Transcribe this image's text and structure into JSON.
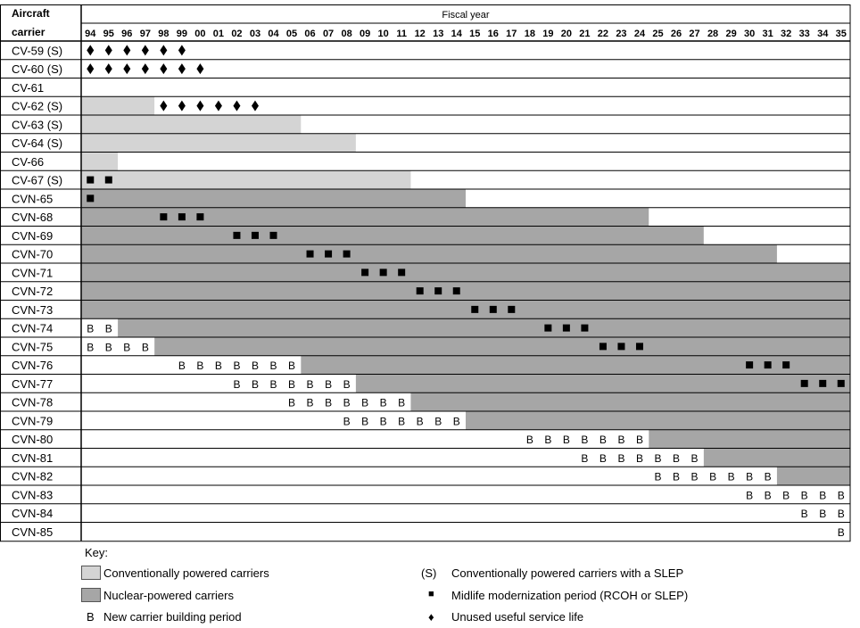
{
  "chart_data": {
    "type": "table",
    "header": {
      "row_label_line1": "Aircraft",
      "row_label_line2": "carrier",
      "columns_title": "Fiscal year"
    },
    "years": [
      "94",
      "95",
      "96",
      "97",
      "98",
      "99",
      "00",
      "01",
      "02",
      "03",
      "04",
      "05",
      "06",
      "07",
      "08",
      "09",
      "10",
      "11",
      "12",
      "13",
      "14",
      "15",
      "16",
      "17",
      "18",
      "19",
      "20",
      "21",
      "22",
      "23",
      "24",
      "25",
      "26",
      "27",
      "28",
      "29",
      "30",
      "31",
      "32",
      "33",
      "34",
      "35"
    ],
    "carriers": [
      {
        "label": "CV-59 (S)",
        "kind": "conventional",
        "service_end": null,
        "unused_life": [
          "94",
          "95",
          "96",
          "97",
          "98",
          "99"
        ],
        "midlife": [],
        "building": []
      },
      {
        "label": "CV-60 (S)",
        "kind": "conventional",
        "service_end": null,
        "unused_life": [
          "94",
          "95",
          "96",
          "97",
          "98",
          "99",
          "00"
        ],
        "midlife": [],
        "building": []
      },
      {
        "label": "CV-61",
        "kind": "conventional",
        "service_end": null,
        "unused_life": [],
        "midlife": [],
        "building": []
      },
      {
        "label": "CV-62 (S)",
        "kind": "conventional",
        "service_end": "97",
        "unused_life": [
          "98",
          "99",
          "00",
          "01",
          "02",
          "03"
        ],
        "midlife": [],
        "building": []
      },
      {
        "label": "CV-63 (S)",
        "kind": "conventional",
        "service_end": "05",
        "unused_life": [],
        "midlife": [],
        "building": []
      },
      {
        "label": "CV-64 (S)",
        "kind": "conventional",
        "service_end": "08",
        "unused_life": [],
        "midlife": [],
        "building": []
      },
      {
        "label": "CV-66",
        "kind": "conventional",
        "service_end": "95",
        "unused_life": [],
        "midlife": [],
        "building": []
      },
      {
        "label": "CV-67 (S)",
        "kind": "conventional",
        "service_end": "11",
        "unused_life": [],
        "midlife": [
          "94",
          "95"
        ],
        "building": []
      },
      {
        "label": "CVN-65",
        "kind": "nuclear",
        "service_end": "14",
        "unused_life": [],
        "midlife": [
          "94"
        ],
        "building": []
      },
      {
        "label": "CVN-68",
        "kind": "nuclear",
        "service_end": "24",
        "unused_life": [],
        "midlife": [
          "98",
          "99",
          "00"
        ],
        "building": []
      },
      {
        "label": "CVN-69",
        "kind": "nuclear",
        "service_end": "27",
        "unused_life": [],
        "midlife": [
          "02",
          "03",
          "04"
        ],
        "building": []
      },
      {
        "label": "CVN-70",
        "kind": "nuclear",
        "service_end": "31",
        "unused_life": [],
        "midlife": [
          "06",
          "07",
          "08"
        ],
        "building": []
      },
      {
        "label": "CVN-71",
        "kind": "nuclear",
        "service_end": "35",
        "unused_life": [],
        "midlife": [
          "09",
          "10",
          "11"
        ],
        "building": []
      },
      {
        "label": "CVN-72",
        "kind": "nuclear",
        "service_end": "35",
        "unused_life": [],
        "midlife": [
          "12",
          "13",
          "14"
        ],
        "building": []
      },
      {
        "label": "CVN-73",
        "kind": "nuclear",
        "service_end": "35",
        "unused_life": [],
        "midlife": [
          "15",
          "16",
          "17"
        ],
        "building": []
      },
      {
        "label": "CVN-74",
        "kind": "nuclear",
        "service_end": "35",
        "unused_life": [],
        "midlife": [
          "19",
          "20",
          "21"
        ],
        "building": [
          "94",
          "95"
        ]
      },
      {
        "label": "CVN-75",
        "kind": "nuclear",
        "service_end": "35",
        "unused_life": [],
        "midlife": [
          "22",
          "23",
          "24"
        ],
        "building": [
          "94",
          "95",
          "96",
          "97"
        ]
      },
      {
        "label": "CVN-76",
        "kind": "nuclear",
        "service_end": "35",
        "unused_life": [],
        "midlife": [
          "30",
          "31",
          "32"
        ],
        "building": [
          "99",
          "00",
          "01",
          "02",
          "03",
          "04",
          "05"
        ]
      },
      {
        "label": "CVN-77",
        "kind": "nuclear",
        "service_end": "35",
        "unused_life": [],
        "midlife": [
          "33",
          "34",
          "35"
        ],
        "building": [
          "02",
          "03",
          "04",
          "05",
          "06",
          "07",
          "08"
        ]
      },
      {
        "label": "CVN-78",
        "kind": "nuclear",
        "service_end": "35",
        "unused_life": [],
        "midlife": [],
        "building": [
          "05",
          "06",
          "07",
          "08",
          "09",
          "10",
          "11"
        ]
      },
      {
        "label": "CVN-79",
        "kind": "nuclear",
        "service_end": "35",
        "unused_life": [],
        "midlife": [],
        "building": [
          "08",
          "09",
          "10",
          "11",
          "12",
          "13",
          "14"
        ]
      },
      {
        "label": "CVN-80",
        "kind": "nuclear",
        "service_end": "35",
        "unused_life": [],
        "midlife": [],
        "building": [
          "18",
          "19",
          "20",
          "21",
          "22",
          "23",
          "24"
        ]
      },
      {
        "label": "CVN-81",
        "kind": "nuclear",
        "service_end": "35",
        "unused_life": [],
        "midlife": [],
        "building": [
          "21",
          "22",
          "23",
          "24",
          "25",
          "26",
          "27"
        ]
      },
      {
        "label": "CVN-82",
        "kind": "nuclear",
        "service_end": "35",
        "unused_life": [],
        "midlife": [],
        "building": [
          "25",
          "26",
          "27",
          "28",
          "29",
          "30",
          "31"
        ]
      },
      {
        "label": "CVN-83",
        "kind": "nuclear",
        "service_end": null,
        "unused_life": [],
        "midlife": [],
        "building": [
          "30",
          "31",
          "32",
          "33",
          "34",
          "35"
        ]
      },
      {
        "label": "CVN-84",
        "kind": "nuclear",
        "service_end": null,
        "unused_life": [],
        "midlife": [],
        "building": [
          "33",
          "34",
          "35"
        ]
      },
      {
        "label": "CVN-85",
        "kind": "nuclear",
        "service_end": null,
        "unused_life": [],
        "midlife": [],
        "building": [
          "35"
        ]
      }
    ],
    "colors": {
      "conventional": "#d4d4d4",
      "nuclear": "#a6a6a6",
      "grid": "#000000"
    },
    "marks": {
      "building_letter": "B",
      "midlife_icon": "square-icon",
      "unused_life_icon": "diamond-icon"
    }
  },
  "key": {
    "title": "Key:",
    "conventional": "Conventionally powered carriers",
    "nuclear": "Nuclear-powered carriers",
    "building_symbol": "B",
    "building": "New carrier building period",
    "slep_symbol": "(S)",
    "slep": "Conventionally powered carriers with a SLEP",
    "midlife_symbol": "■",
    "midlife": "Midlife modernization period (RCOH or SLEP)",
    "unused_symbol": "♦",
    "unused": "Unused useful service life"
  }
}
